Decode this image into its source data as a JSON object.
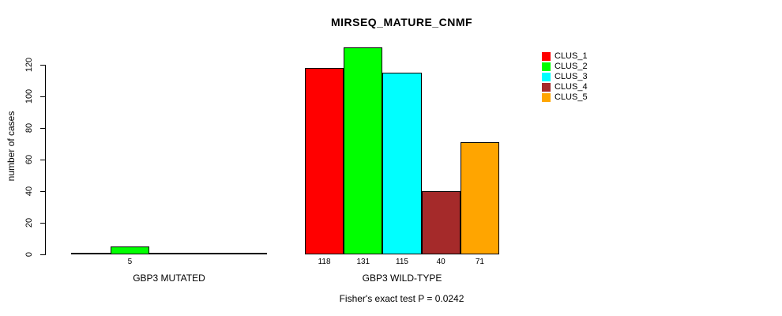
{
  "title": "MIRSEQ_MATURE_CNMF",
  "subtitle": "Fisher's exact test P = 0.0242",
  "y_axis": {
    "label": "number of cases"
  },
  "legend": {
    "items": [
      {
        "label": "CLUS_1",
        "color": "#FF0000"
      },
      {
        "label": "CLUS_2",
        "color": "#00FF00"
      },
      {
        "label": "CLUS_3",
        "color": "#00FFFF"
      },
      {
        "label": "CLUS_4",
        "color": "#A52A2A"
      },
      {
        "label": "CLUS_5",
        "color": "#FFA500"
      }
    ]
  },
  "chart_data": {
    "type": "bar",
    "title": "MIRSEQ_MATURE_CNMF",
    "subtitle": "Fisher's exact test P = 0.0242",
    "ylabel": "number of cases",
    "xlabel": "",
    "ylim": [
      0,
      131
    ],
    "yticks": [
      0,
      20,
      40,
      60,
      80,
      100,
      120
    ],
    "grid": false,
    "legend_position": "top-right",
    "categories": [
      "GBP3 MUTATED",
      "GBP3 WILD-TYPE"
    ],
    "series": [
      {
        "name": "CLUS_1",
        "color": "#FF0000",
        "values": [
          0,
          118
        ]
      },
      {
        "name": "CLUS_2",
        "color": "#00FF00",
        "values": [
          5,
          131
        ]
      },
      {
        "name": "CLUS_3",
        "color": "#00FFFF",
        "values": [
          0,
          115
        ]
      },
      {
        "name": "CLUS_4",
        "color": "#A52A2A",
        "values": [
          0,
          40
        ]
      },
      {
        "name": "CLUS_5",
        "color": "#FFA500",
        "values": [
          0,
          71
        ]
      }
    ],
    "bar_value_labels": [
      [
        "",
        "5",
        "",
        "",
        ""
      ],
      [
        "118",
        "131",
        "115",
        "40",
        "71"
      ]
    ]
  }
}
